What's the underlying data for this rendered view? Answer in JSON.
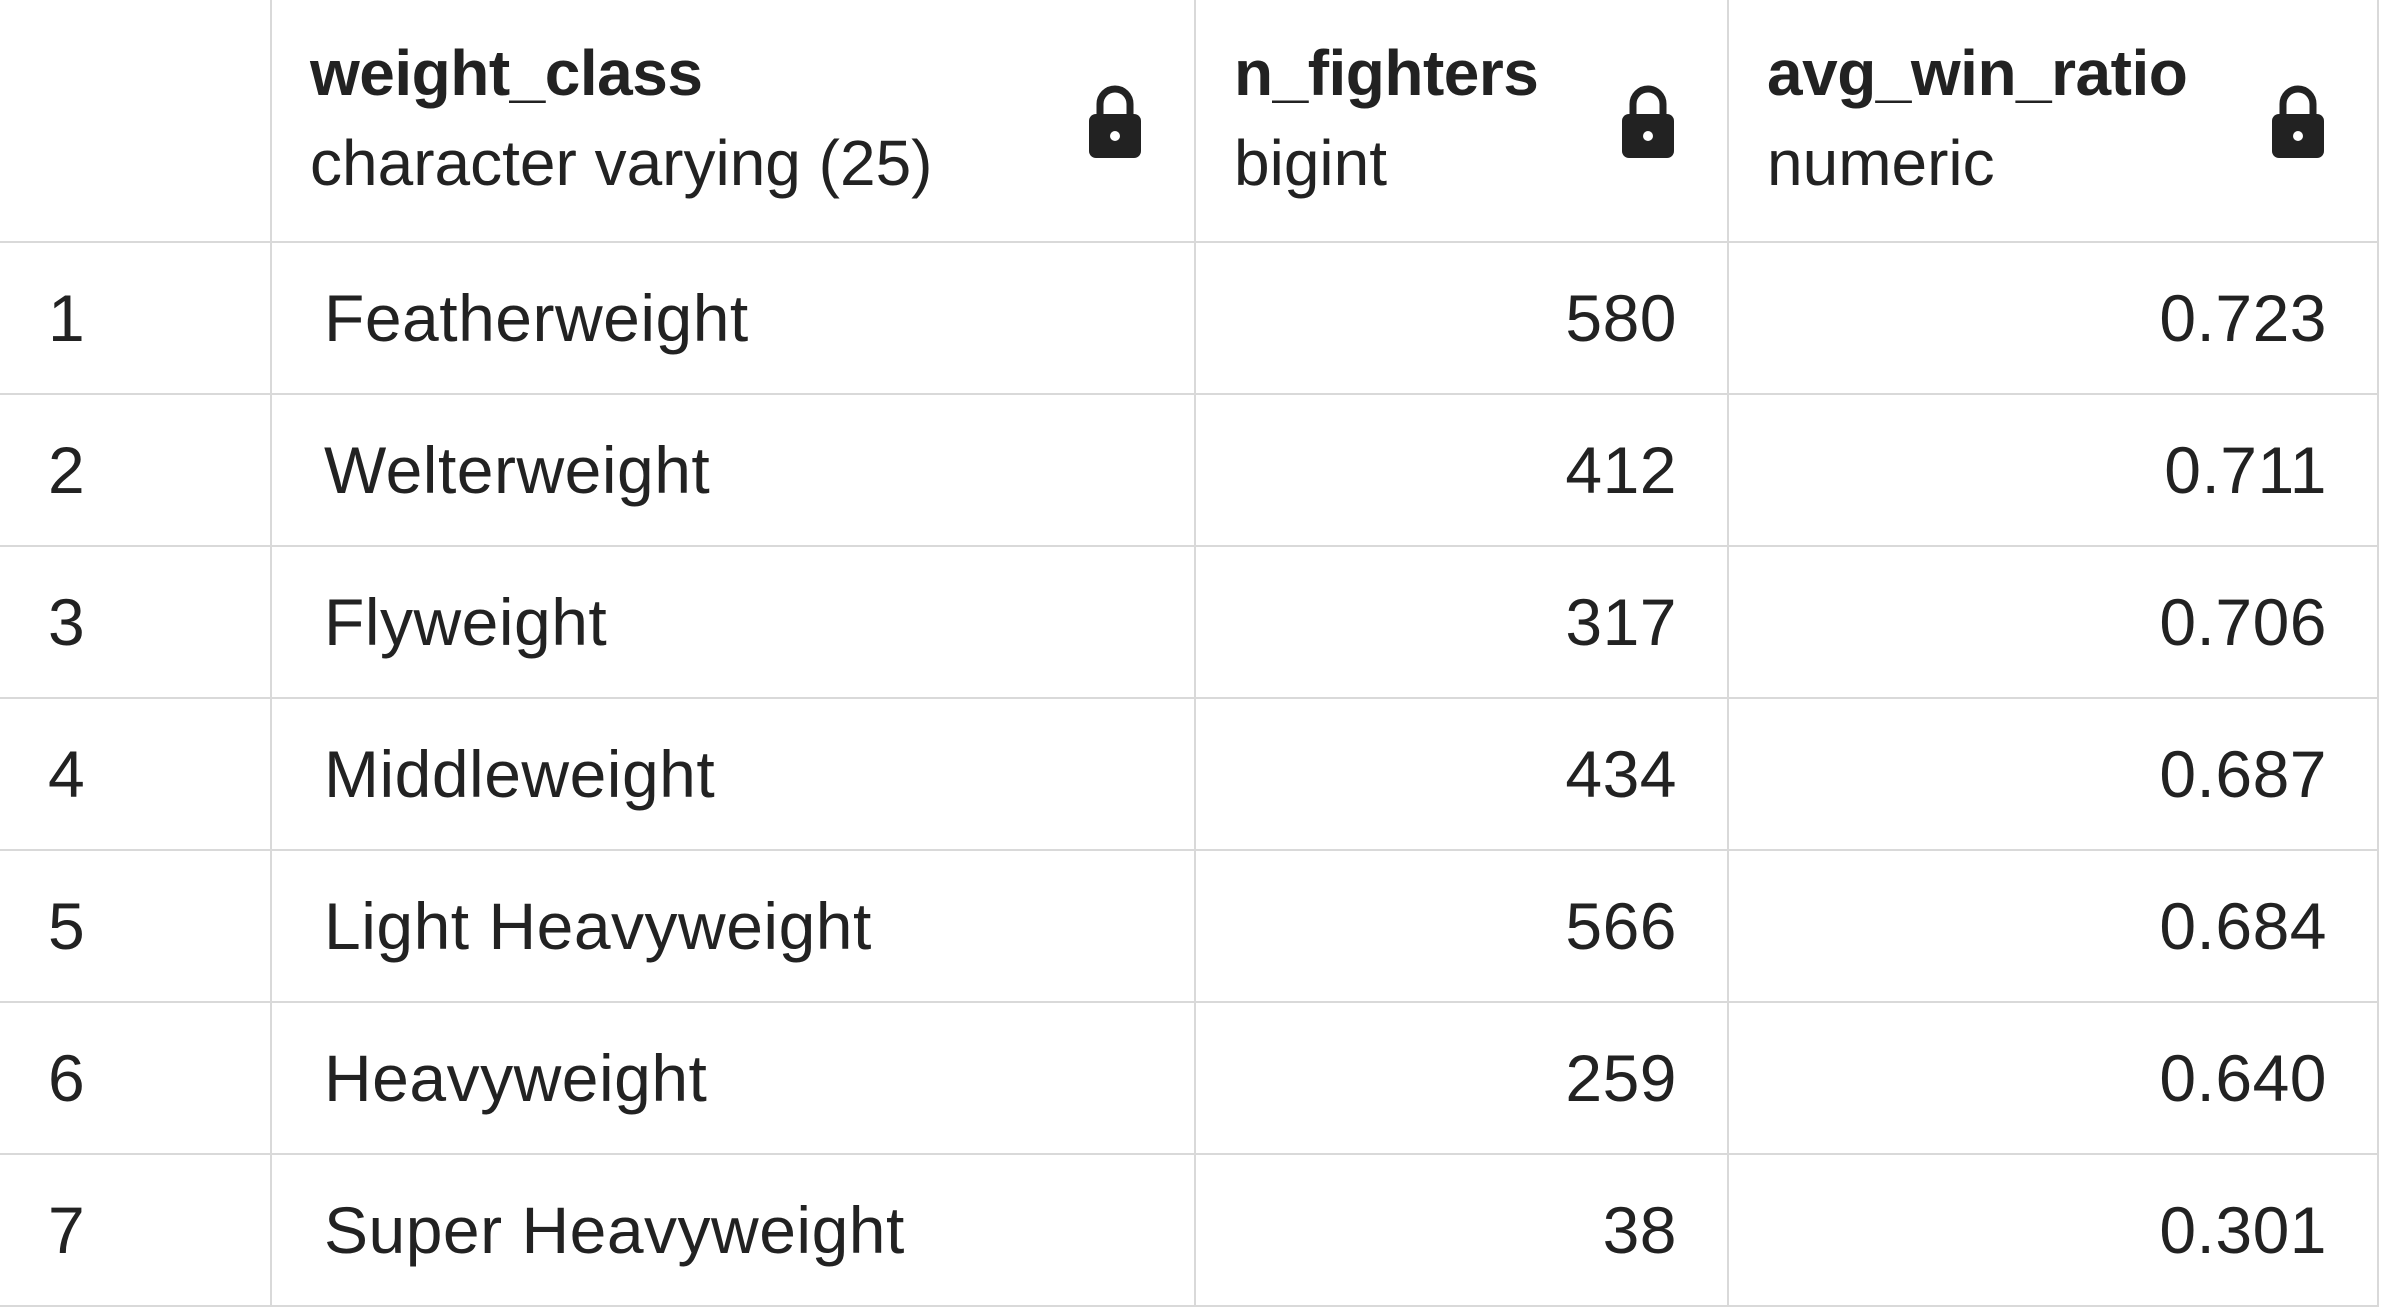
{
  "columns": [
    {
      "name": "weight_class",
      "type": "character varying (25)",
      "icon": "lock-icon"
    },
    {
      "name": "n_fighters",
      "type": "bigint",
      "icon": "lock-icon"
    },
    {
      "name": "avg_win_ratio",
      "type": "numeric",
      "icon": "lock-icon"
    }
  ],
  "rows": [
    {
      "index": "1",
      "weight_class": "Featherweight",
      "n_fighters": "580",
      "avg_win_ratio": "0.723"
    },
    {
      "index": "2",
      "weight_class": "Welterweight",
      "n_fighters": "412",
      "avg_win_ratio": "0.711"
    },
    {
      "index": "3",
      "weight_class": "Flyweight",
      "n_fighters": "317",
      "avg_win_ratio": "0.706"
    },
    {
      "index": "4",
      "weight_class": "Middleweight",
      "n_fighters": "434",
      "avg_win_ratio": "0.687"
    },
    {
      "index": "5",
      "weight_class": "Light Heavyweight",
      "n_fighters": "566",
      "avg_win_ratio": "0.684"
    },
    {
      "index": "6",
      "weight_class": "Heavyweight",
      "n_fighters": "259",
      "avg_win_ratio": "0.640"
    },
    {
      "index": "7",
      "weight_class": "Super Heavyweight",
      "n_fighters": "38",
      "avg_win_ratio": "0.301"
    }
  ],
  "colors": {
    "grid_line": "#d9d9d9",
    "text": "#222222",
    "lock_icon": "#222222"
  }
}
